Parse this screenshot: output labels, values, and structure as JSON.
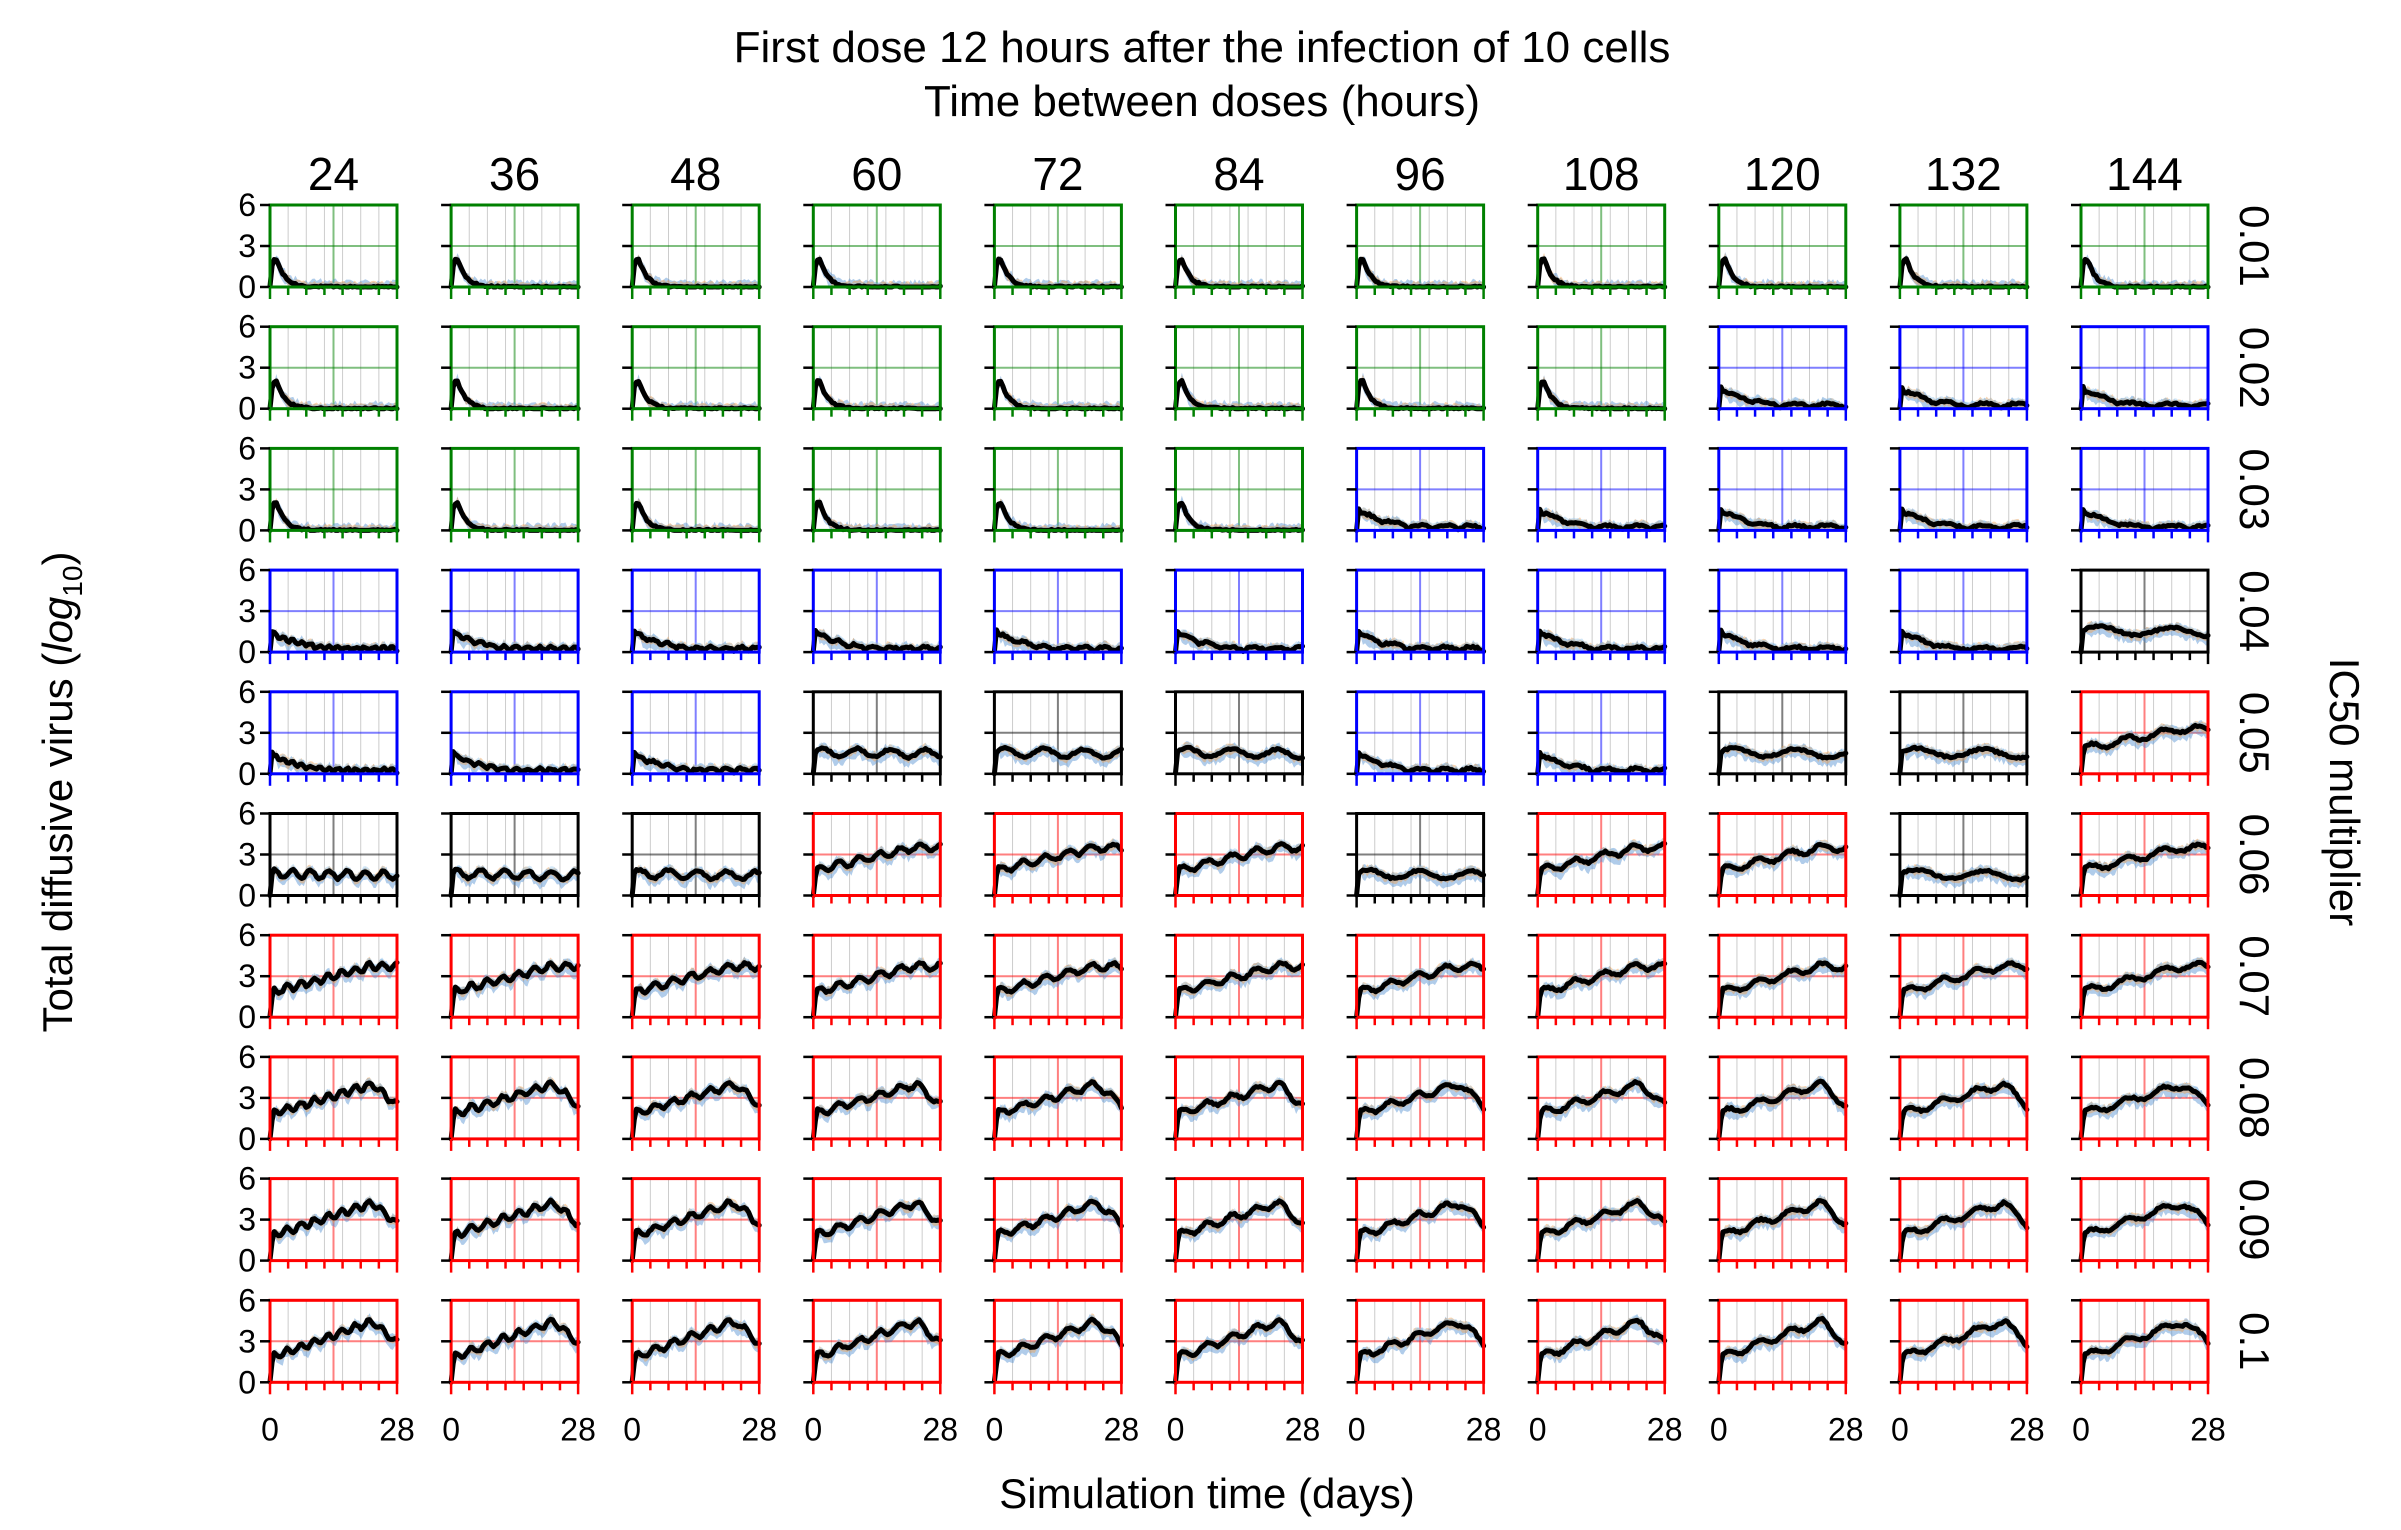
{
  "chart_data": {
    "type": "line",
    "title": "First dose 12 hours after the infection of 10 cells",
    "subtitle": "Time between doses (hours)",
    "xlabel": "Simulation time (days)",
    "ylabel_prefix": "Total diffusive virus (",
    "ylabel_log": "log",
    "ylabel_sub": "10",
    "ylabel_suffix": ")",
    "right_label": "IC50 multiplier",
    "xlim": [
      0,
      28
    ],
    "ylim": [
      0,
      6
    ],
    "x_ticks": [
      "0",
      "28"
    ],
    "y_ticks": [
      "0",
      "3",
      "6"
    ],
    "columns": [
      "24",
      "36",
      "48",
      "60",
      "72",
      "84",
      "96",
      "108",
      "120",
      "132",
      "144"
    ],
    "rows": [
      "0.01",
      "0.02",
      "0.03",
      "0.04",
      "0.05",
      "0.06",
      "0.07",
      "0.08",
      "0.09",
      "0.1"
    ],
    "grid": true,
    "outcome_colors": {
      "g": "#008000",
      "b": "#0000ff",
      "k": "#000000",
      "r": "#ff0000"
    },
    "series_colors": {
      "mean": "#000000",
      "band_a": "#4f8fd0",
      "band_b": "#f0a050",
      "band_c": "#9ac8ea"
    },
    "panel_outcomes": [
      [
        "g",
        "g",
        "g",
        "g",
        "g",
        "g",
        "g",
        "g",
        "g",
        "g",
        "g"
      ],
      [
        "g",
        "g",
        "g",
        "g",
        "g",
        "g",
        "g",
        "g",
        "b",
        "b",
        "b"
      ],
      [
        "g",
        "g",
        "g",
        "g",
        "g",
        "g",
        "b",
        "b",
        "b",
        "b",
        "b"
      ],
      [
        "b",
        "b",
        "b",
        "b",
        "b",
        "b",
        "b",
        "b",
        "b",
        "b",
        "k"
      ],
      [
        "b",
        "b",
        "b",
        "k",
        "k",
        "k",
        "b",
        "b",
        "k",
        "k",
        "r"
      ],
      [
        "k",
        "k",
        "k",
        "r",
        "r",
        "r",
        "k",
        "r",
        "r",
        "k",
        "r"
      ],
      [
        "r",
        "r",
        "r",
        "r",
        "r",
        "r",
        "r",
        "r",
        "r",
        "r",
        "r"
      ],
      [
        "r",
        "r",
        "r",
        "r",
        "r",
        "r",
        "r",
        "r",
        "r",
        "r",
        "r"
      ],
      [
        "r",
        "r",
        "r",
        "r",
        "r",
        "r",
        "r",
        "r",
        "r",
        "r",
        "r"
      ],
      [
        "r",
        "r",
        "r",
        "r",
        "r",
        "r",
        "r",
        "r",
        "r",
        "r",
        "r"
      ]
    ]
  }
}
